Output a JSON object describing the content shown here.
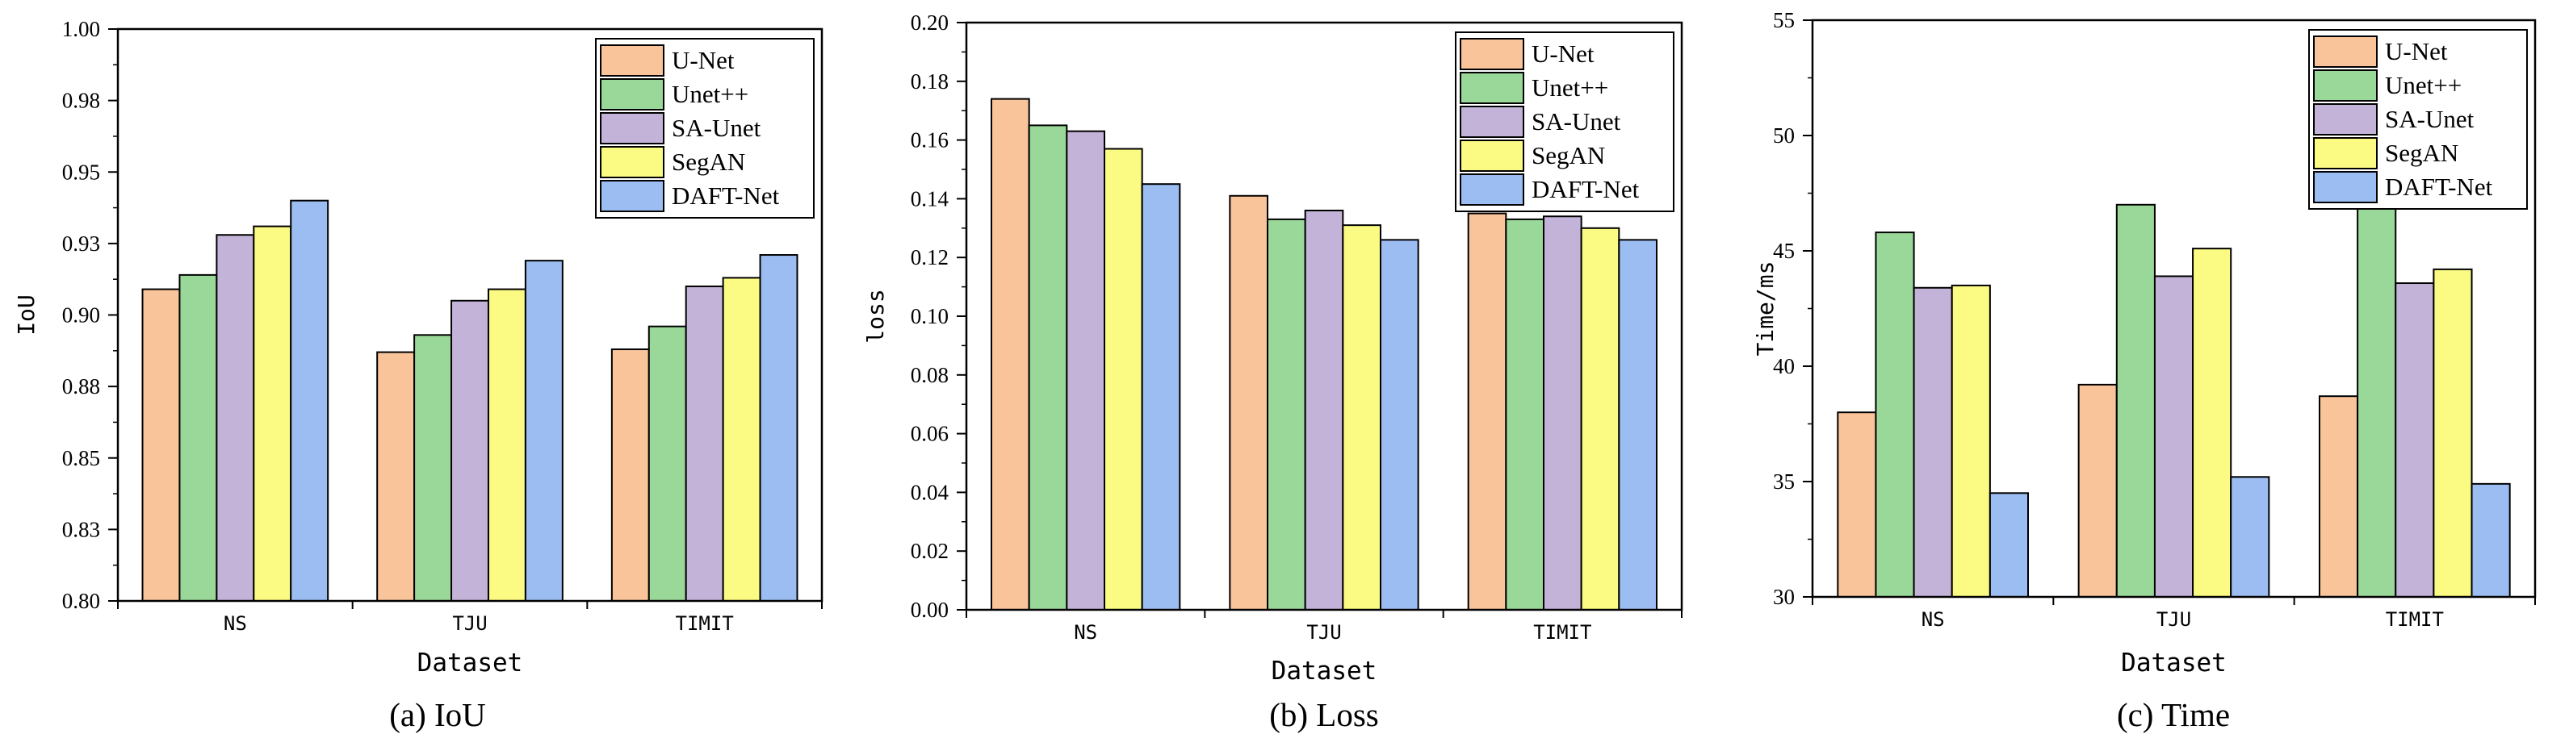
{
  "chart_data": [
    {
      "type": "bar",
      "caption": "(a) IoU",
      "xlabel": "Dataset",
      "ylabel": "IoU",
      "categories": [
        "NS",
        "TJU",
        "TIMIT"
      ],
      "ylim": [
        0.8,
        1.0
      ],
      "yticks": [
        "0.80",
        "0.83",
        "0.85",
        "0.88",
        "0.90",
        "0.93",
        "0.95",
        "0.98",
        "1.00"
      ],
      "series": [
        {
          "name": "U-Net",
          "values": [
            0.909,
            0.887,
            0.888
          ]
        },
        {
          "name": "Unet++",
          "values": [
            0.914,
            0.893,
            0.896
          ]
        },
        {
          "name": "SA-Unet",
          "values": [
            0.928,
            0.905,
            0.91
          ]
        },
        {
          "name": "SegAN",
          "values": [
            0.931,
            0.909,
            0.913
          ]
        },
        {
          "name": "DAFT-Net",
          "values": [
            0.94,
            0.919,
            0.921
          ]
        }
      ],
      "legend_position": "top-right"
    },
    {
      "type": "bar",
      "caption": "(b) Loss",
      "xlabel": "Dataset",
      "ylabel": "loss",
      "categories": [
        "NS",
        "TJU",
        "TIMIT"
      ],
      "ylim": [
        0.0,
        0.2
      ],
      "yticks": [
        "0.00",
        "0.02",
        "0.04",
        "0.06",
        "0.08",
        "0.10",
        "0.12",
        "0.14",
        "0.16",
        "0.18",
        "0.20"
      ],
      "series": [
        {
          "name": "U-Net",
          "values": [
            0.174,
            0.141,
            0.135
          ]
        },
        {
          "name": "Unet++",
          "values": [
            0.165,
            0.133,
            0.133
          ]
        },
        {
          "name": "SA-Unet",
          "values": [
            0.163,
            0.136,
            0.134
          ]
        },
        {
          "name": "SegAN",
          "values": [
            0.157,
            0.131,
            0.13
          ]
        },
        {
          "name": "DAFT-Net",
          "values": [
            0.145,
            0.126,
            0.126
          ]
        }
      ],
      "legend_position": "top-right"
    },
    {
      "type": "bar",
      "caption": "(c) Time",
      "xlabel": "Dataset",
      "ylabel": "Time/ms",
      "categories": [
        "NS",
        "TJU",
        "TIMIT"
      ],
      "ylim": [
        30,
        55
      ],
      "yticks": [
        "30",
        "35",
        "40",
        "45",
        "50",
        "55"
      ],
      "series": [
        {
          "name": "U-Net",
          "values": [
            38.0,
            39.2,
            38.7
          ]
        },
        {
          "name": "Unet++",
          "values": [
            45.8,
            47.0,
            46.9
          ]
        },
        {
          "name": "SA-Unet",
          "values": [
            43.4,
            43.9,
            43.6
          ]
        },
        {
          "name": "SegAN",
          "values": [
            43.5,
            45.1,
            44.2
          ]
        },
        {
          "name": "DAFT-Net",
          "values": [
            34.5,
            35.2,
            34.9
          ]
        }
      ],
      "legend_position": "top-right"
    }
  ],
  "colors": {
    "U-Net": "#f9c49a",
    "Unet++": "#9ad89a",
    "SA-Unet": "#c4b3d8",
    "SegAN": "#fbfb84",
    "DAFT-Net": "#9cbdf2"
  }
}
